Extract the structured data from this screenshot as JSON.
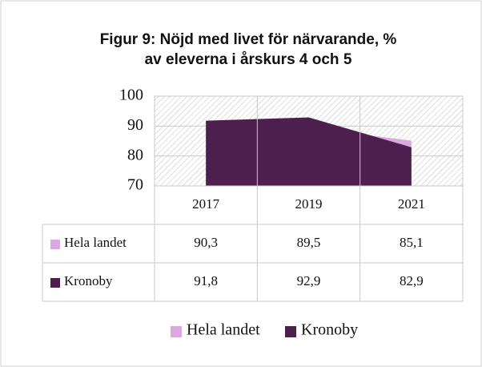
{
  "chart_data": {
    "type": "area",
    "title": [
      "Figur 9: Nöjd med livet för närvarande, %",
      "av eleverna i årskurs 4 och 5"
    ],
    "categories": [
      "2017",
      "2019",
      "2021"
    ],
    "series": [
      {
        "name": "Hela landet",
        "color": "#dba8e0",
        "values": [
          90.3,
          89.5,
          85.1
        ],
        "value_labels": [
          "90,3",
          "89,5",
          "85,1"
        ]
      },
      {
        "name": "Kronoby",
        "color": "#4d1f4f",
        "values": [
          91.8,
          92.9,
          82.9
        ],
        "value_labels": [
          "91,8",
          "92,9",
          "82,9"
        ]
      }
    ],
    "ylim": [
      70,
      100
    ],
    "yticks": [
      70,
      80,
      90,
      100
    ],
    "grid": true,
    "data_table": true,
    "legend": "bottom"
  }
}
